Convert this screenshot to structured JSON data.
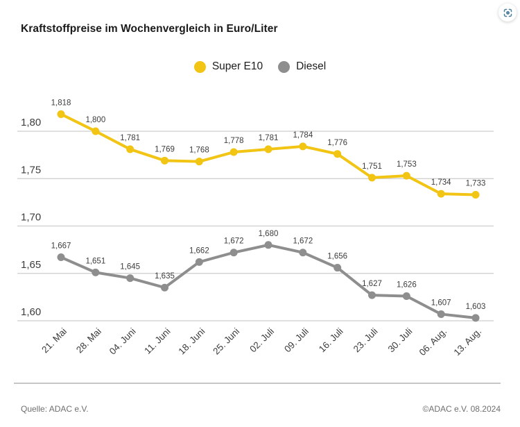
{
  "title": "Kraftstoffpreise im Wochenvergleich in Euro/Liter",
  "legend": {
    "items": [
      {
        "label": "Super E10",
        "color": "#F2C413"
      },
      {
        "label": "Diesel",
        "color": "#8E8E8E"
      }
    ]
  },
  "chart_data": {
    "type": "line",
    "title": "Kraftstoffpreise im Wochenvergleich in Euro/Liter",
    "unit": "Euro/Liter",
    "categories": [
      "21. Mai",
      "28. Mai",
      "04. Juni",
      "11. Juni",
      "18. Juni",
      "25. Juni",
      "02. Juli",
      "09. Juli",
      "16. Juli",
      "23. Juli",
      "30. Juli",
      "06. Aug.",
      "13. Aug."
    ],
    "series": [
      {
        "name": "Super E10",
        "color": "#F2C413",
        "values": [
          1.818,
          1.8,
          1.781,
          1.769,
          1.768,
          1.778,
          1.781,
          1.784,
          1.776,
          1.751,
          1.753,
          1.734,
          1.733
        ]
      },
      {
        "name": "Diesel",
        "color": "#8E8E8E",
        "values": [
          1.667,
          1.651,
          1.645,
          1.635,
          1.662,
          1.672,
          1.68,
          1.672,
          1.656,
          1.627,
          1.626,
          1.607,
          1.603
        ]
      }
    ],
    "yticks": [
      1.8,
      1.75,
      1.7,
      1.65,
      1.6
    ],
    "ylim": [
      1.585,
      1.845
    ],
    "grid": true,
    "legend_position": "top-center",
    "value_label_format": "comma-decimal-3",
    "ytick_label_format": "comma-decimal-2",
    "colors": {
      "gridline": "#cdcdcd",
      "tick_text": "#3c3c3c",
      "value_label_text": "#3c3c3c"
    }
  },
  "footer": {
    "source": "Quelle: ADAC e.V.",
    "copyright": "©ADAC e.V. 08.2024"
  },
  "widget": {
    "icon": "scan-viewfinder-icon",
    "color": "#4d7e9d"
  }
}
